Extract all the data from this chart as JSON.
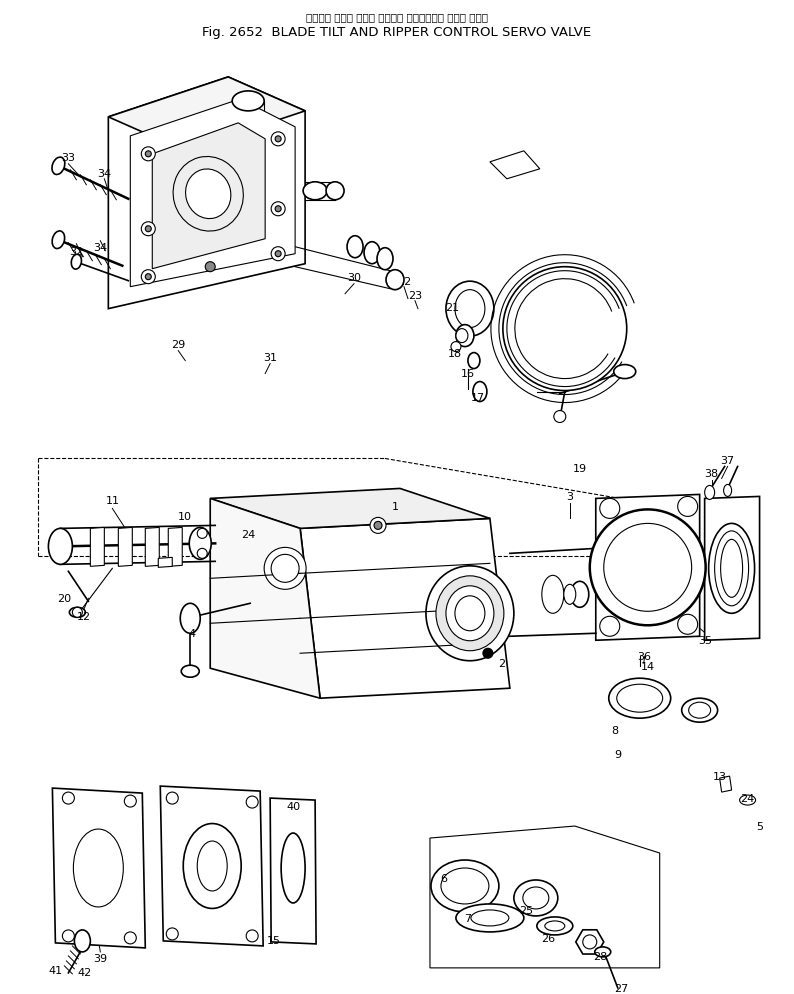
{
  "title_line1": "ブレード チルト および リッパー コントロール サーボ バルブ",
  "title_line2": "Fig. 2652  BLADE TILT AND RIPPER CONTROL SERVO VALVE",
  "bg_color": "#ffffff",
  "lc": "#000000",
  "fig_width": 7.94,
  "fig_height": 9.95,
  "dpi": 100
}
